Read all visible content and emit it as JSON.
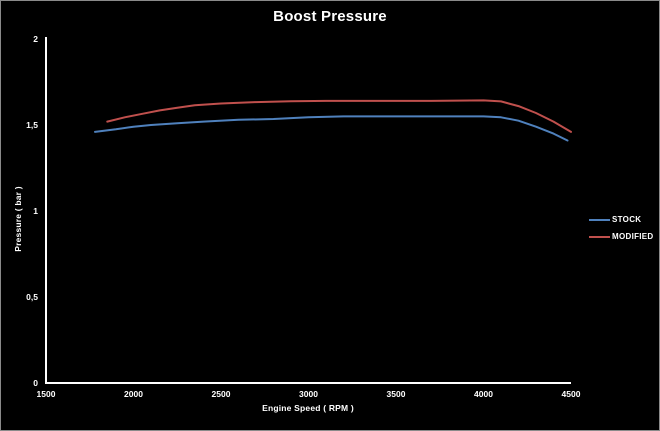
{
  "chart_data": {
    "type": "line",
    "title": "Boost Pressure",
    "xlabel": "Engine Speed ( RPM )",
    "ylabel": "Pressure ( bar )",
    "xlim": [
      1500,
      4500
    ],
    "ylim": [
      0,
      2
    ],
    "grid": false,
    "background": "#000000",
    "axis_color": "#ffffff",
    "text_color": "#ffffff",
    "legend_position": "right",
    "x_ticks": [
      {
        "v": 1500,
        "label": "1500"
      },
      {
        "v": 2000,
        "label": "2000"
      },
      {
        "v": 2500,
        "label": "2500"
      },
      {
        "v": 3000,
        "label": "3000"
      },
      {
        "v": 3500,
        "label": "3500"
      },
      {
        "v": 4000,
        "label": "4000"
      },
      {
        "v": 4500,
        "label": "4500"
      }
    ],
    "y_ticks": [
      {
        "v": 0,
        "label": "0"
      },
      {
        "v": 0.5,
        "label": "0,5"
      },
      {
        "v": 1,
        "label": "1"
      },
      {
        "v": 1.5,
        "label": "1,5"
      },
      {
        "v": 2,
        "label": "2"
      }
    ],
    "series": [
      {
        "name": "STOCK",
        "color": "#4f81bd",
        "points": [
          [
            1780,
            1.46
          ],
          [
            1900,
            1.475
          ],
          [
            2000,
            1.49
          ],
          [
            2100,
            1.5
          ],
          [
            2250,
            1.51
          ],
          [
            2400,
            1.52
          ],
          [
            2600,
            1.53
          ],
          [
            2800,
            1.535
          ],
          [
            3000,
            1.545
          ],
          [
            3200,
            1.55
          ],
          [
            3500,
            1.55
          ],
          [
            3800,
            1.55
          ],
          [
            4000,
            1.55
          ],
          [
            4100,
            1.545
          ],
          [
            4200,
            1.525
          ],
          [
            4300,
            1.49
          ],
          [
            4400,
            1.45
          ],
          [
            4480,
            1.41
          ]
        ]
      },
      {
        "name": "MODIFIED",
        "color": "#c0504d",
        "points": [
          [
            1850,
            1.52
          ],
          [
            1950,
            1.545
          ],
          [
            2050,
            1.565
          ],
          [
            2150,
            1.585
          ],
          [
            2250,
            1.6
          ],
          [
            2350,
            1.615
          ],
          [
            2500,
            1.625
          ],
          [
            2700,
            1.633
          ],
          [
            2900,
            1.638
          ],
          [
            3100,
            1.64
          ],
          [
            3400,
            1.64
          ],
          [
            3700,
            1.64
          ],
          [
            4000,
            1.643
          ],
          [
            4100,
            1.637
          ],
          [
            4200,
            1.61
          ],
          [
            4300,
            1.57
          ],
          [
            4400,
            1.52
          ],
          [
            4500,
            1.46
          ]
        ]
      }
    ]
  }
}
